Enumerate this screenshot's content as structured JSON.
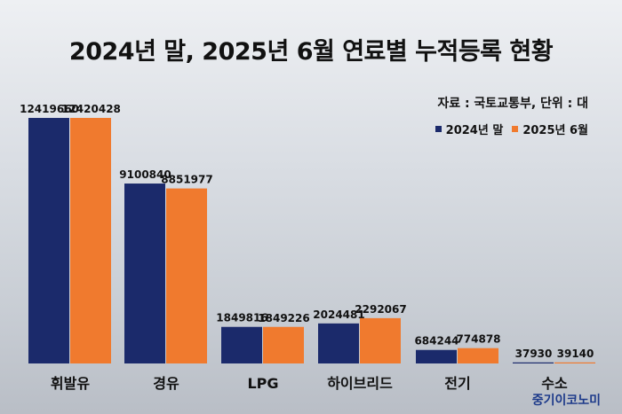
{
  "title": "2024년 말, 2025년 6월 연료별 누적등록 현황",
  "source": "자료 : 국토교통부, 단위 : 대",
  "watermark": "중기이코노미",
  "colors": {
    "series1": "#1b2a6b",
    "series2": "#f07a2e"
  },
  "chart_data": {
    "type": "bar",
    "categories": [
      "휘발유",
      "경유",
      "LPG",
      "하이브리드",
      "전기",
      "수소"
    ],
    "series": [
      {
        "name": "2024년 말",
        "values": [
          12419660,
          9100840,
          1849816,
          2024481,
          684244,
          37930
        ]
      },
      {
        "name": "2025년 6월",
        "values": [
          12420428,
          8851977,
          1849226,
          2292067,
          774878,
          39140
        ]
      }
    ],
    "value_labels": [
      [
        "12419660",
        "9100840",
        "1849816",
        "2024481",
        "684244",
        "37930"
      ],
      [
        "12420428",
        "8851977",
        "1849226",
        "2292067",
        "774878",
        "39140"
      ]
    ],
    "ylim": [
      0,
      12420428
    ],
    "grid": false,
    "legend_position": "top-right"
  }
}
